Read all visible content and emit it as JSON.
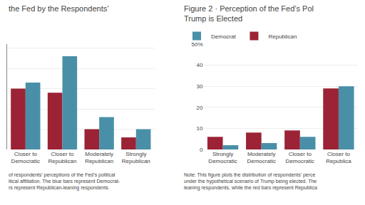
{
  "chart_data": [
    {
      "type": "bar",
      "title": "the Fed by the Respondents’",
      "categories": [
        "Closer to\nDemocratic",
        "Closer to\nRepublican",
        "Moderately\nRepublican",
        "Strongly\nRepublican"
      ],
      "series": [
        {
          "color": "#9b2335",
          "values": [
            30,
            28,
            10,
            6
          ]
        },
        {
          "color": "#4a8fa8",
          "values": [
            33,
            46,
            16,
            10
          ]
        }
      ],
      "ylim": [
        0,
        52
      ],
      "yticks": [
        10,
        20,
        30,
        40,
        50
      ],
      "grid": true,
      "tick_labels": "x",
      "annotations": [
        "of respondents’ perceptions of the Fed’s political",
        "itical affiliation. The blue bars represent Democrat-",
        "rs represent Republican-leaning respondents."
      ]
    },
    {
      "type": "bar",
      "title": "Figure 2 · Perception of the Fed’s Pol",
      "subtitle": "Trump is Elected",
      "categories": [
        "Strongly\nDemocratic",
        "Moderately\nDemocratic",
        "Closer to\nDemocratic",
        "Closer to\nRepublica"
      ],
      "series": [
        {
          "name": "Republican",
          "color": "#9b2335",
          "values": [
            6,
            8,
            9,
            29
          ]
        },
        {
          "name": "Democrat",
          "color": "#4a8fa8",
          "values": [
            2,
            3,
            6,
            30
          ]
        }
      ],
      "ylim": [
        0,
        50
      ],
      "yticks": [
        0,
        10,
        20,
        30,
        40,
        {
          "value": 50,
          "label": "50%"
        }
      ],
      "grid": true,
      "legend": "upper left",
      "annotations": [
        "Note: This figure plots the distribution of respondents’ perce",
        "under the hypothetical scenario of Trump being elected. The",
        "leaning respondents, while the red bars represent Republica"
      ]
    }
  ]
}
